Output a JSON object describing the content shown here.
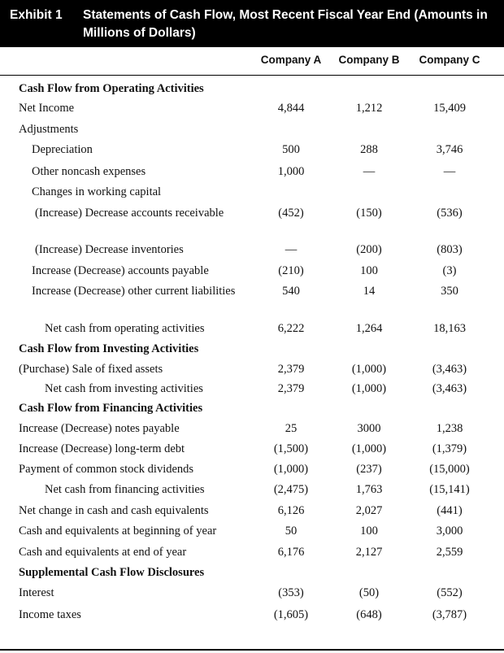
{
  "header": {
    "label": "Exhibit 1",
    "title": "Statements of Cash Flow, Most Recent Fiscal Year End (Amounts in Millions of Dollars)"
  },
  "columns": [
    "Company A",
    "Company B",
    "Company C"
  ],
  "rows": [
    {
      "label": "Cash Flow from Operating Activities",
      "type": "section",
      "values": [
        "",
        "",
        ""
      ]
    },
    {
      "label": "Net Income",
      "type": "i0",
      "values": [
        "4,844",
        "1,212",
        "15,409"
      ]
    },
    {
      "label": "Adjustments",
      "type": "i0",
      "values": [
        "",
        "",
        ""
      ]
    },
    {
      "label": "Depreciation",
      "type": "i1",
      "values": [
        "500",
        "288",
        "3,746"
      ]
    },
    {
      "label": "Other noncash expenses",
      "type": "i1",
      "values": [
        "1,000",
        "—",
        "—"
      ]
    },
    {
      "label": "Changes in working capital",
      "type": "i1",
      "values": [
        "",
        "",
        ""
      ]
    },
    {
      "label": "(Increase) Decrease accounts receivable",
      "type": "i2",
      "values": [
        "(452)",
        "(150)",
        "(536)"
      ]
    },
    {
      "label": "(Increase) Decrease inventories",
      "type": "i2",
      "values": [
        "—",
        "(200)",
        "(803)"
      ]
    },
    {
      "label": "Increase (Decrease) accounts payable",
      "type": "i1",
      "values": [
        "(210)",
        "100",
        "(3)"
      ]
    },
    {
      "label": "Increase (Decrease) other current liabilities",
      "type": "i1",
      "values": [
        "540",
        "14",
        "350"
      ]
    },
    {
      "label": "Net cash from operating activities",
      "type": "i3",
      "values": [
        "6,222",
        "1,264",
        "18,163"
      ]
    },
    {
      "label": "Cash Flow from Investing Activities",
      "type": "section",
      "values": [
        "",
        "",
        ""
      ]
    },
    {
      "label": "(Purchase) Sale of fixed assets",
      "type": "i0",
      "values": [
        "2,379",
        "(1,000)",
        "(3,463)"
      ]
    },
    {
      "label": "Net cash from investing activities",
      "type": "i3",
      "values": [
        "2,379",
        "(1,000)",
        "(3,463)"
      ]
    },
    {
      "label": "Cash Flow from Financing Activities",
      "type": "section",
      "values": [
        "",
        "",
        ""
      ]
    },
    {
      "label": "Increase (Decrease) notes payable",
      "type": "i0",
      "values": [
        "25",
        "3000",
        "1,238"
      ]
    },
    {
      "label": "Increase (Decrease) long-term debt",
      "type": "i0",
      "values": [
        "(1,500)",
        "(1,000)",
        "(1,379)"
      ]
    },
    {
      "label": "Payment of common stock dividends",
      "type": "i0",
      "values": [
        "(1,000)",
        "(237)",
        "(15,000)"
      ]
    },
    {
      "label": "Net cash from financing activities",
      "type": "i3",
      "values": [
        "(2,475)",
        "1,763",
        "(15,141)"
      ]
    },
    {
      "label": "Net change in cash and cash equivalents",
      "type": "i0",
      "values": [
        "6,126",
        "2,027",
        "(441)"
      ]
    },
    {
      "label": "Cash and equivalents at beginning of year",
      "type": "i0",
      "values": [
        "50",
        "100",
        "3,000"
      ]
    },
    {
      "label": "Cash and equivalents at end of year",
      "type": "i0",
      "values": [
        "6,176",
        "2,127",
        "2,559"
      ]
    },
    {
      "label": "Supplemental Cash Flow Disclosures",
      "type": "section",
      "values": [
        "",
        "",
        ""
      ]
    },
    {
      "label": "Interest",
      "type": "i0",
      "values": [
        "(353)",
        "(50)",
        "(552)"
      ]
    },
    {
      "label": "Income taxes",
      "type": "i0",
      "values": [
        "(1,605)",
        "(648)",
        "(3,787)"
      ]
    }
  ]
}
